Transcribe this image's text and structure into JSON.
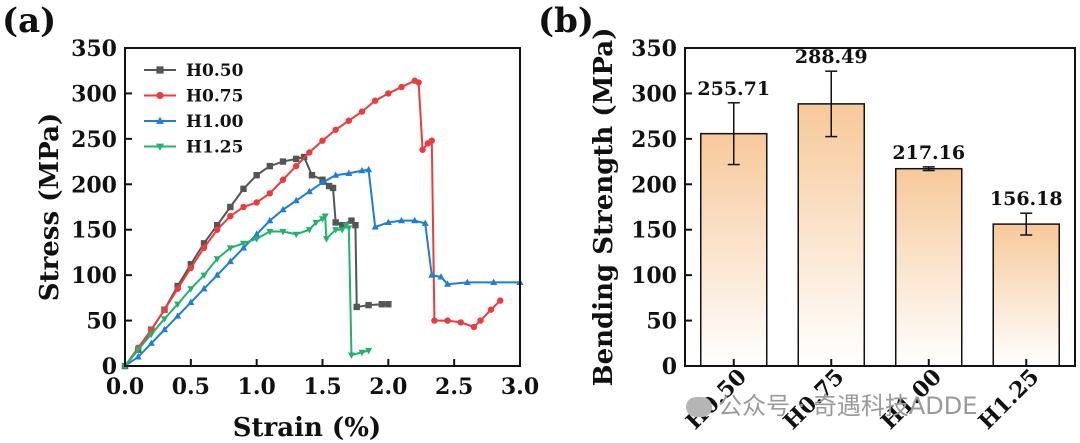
{
  "chart_data": [
    {
      "panel_label": "(a)",
      "type": "line",
      "xlabel": "Strain (%)",
      "ylabel": "Stress (MPa)",
      "xlim": [
        0,
        3.0
      ],
      "ylim": [
        0,
        350
      ],
      "xticks": [
        "0.0",
        "0.5",
        "1.0",
        "1.5",
        "2.0",
        "2.5",
        "3.0"
      ],
      "yticks": [
        "0",
        "50",
        "100",
        "150",
        "200",
        "250",
        "300",
        "350"
      ],
      "grid": false,
      "legend": "top-left",
      "series": [
        {
          "name": "H0.50",
          "color": "#555555",
          "marker": "square",
          "points": [
            [
              0,
              0
            ],
            [
              0.1,
              18
            ],
            [
              0.2,
              40
            ],
            [
              0.3,
              62
            ],
            [
              0.4,
              88
            ],
            [
              0.5,
              112
            ],
            [
              0.6,
              135
            ],
            [
              0.7,
              155
            ],
            [
              0.8,
              175
            ],
            [
              0.9,
              195
            ],
            [
              1.0,
              210
            ],
            [
              1.1,
              220
            ],
            [
              1.2,
              225
            ],
            [
              1.3,
              228
            ],
            [
              1.36,
              230
            ],
            [
              1.42,
              210
            ],
            [
              1.5,
              205
            ],
            [
              1.55,
              198
            ],
            [
              1.58,
              196
            ],
            [
              1.6,
              158
            ],
            [
              1.65,
              155
            ],
            [
              1.72,
              160
            ],
            [
              1.75,
              155
            ],
            [
              1.76,
              65
            ],
            [
              1.85,
              67
            ],
            [
              1.95,
              68
            ],
            [
              2.0,
              68
            ]
          ]
        },
        {
          "name": "H0.75",
          "color": "#ee3b3b",
          "marker": "circle",
          "points": [
            [
              0,
              0
            ],
            [
              0.1,
              20
            ],
            [
              0.2,
              40
            ],
            [
              0.3,
              62
            ],
            [
              0.4,
              85
            ],
            [
              0.5,
              108
            ],
            [
              0.6,
              130
            ],
            [
              0.7,
              150
            ],
            [
              0.8,
              165
            ],
            [
              0.9,
              175
            ],
            [
              1.0,
              180
            ],
            [
              1.1,
              190
            ],
            [
              1.2,
              205
            ],
            [
              1.3,
              220
            ],
            [
              1.4,
              235
            ],
            [
              1.5,
              248
            ],
            [
              1.6,
              260
            ],
            [
              1.7,
              270
            ],
            [
              1.8,
              280
            ],
            [
              1.9,
              292
            ],
            [
              2.0,
              300
            ],
            [
              2.1,
              307
            ],
            [
              2.2,
              314
            ],
            [
              2.23,
              312
            ],
            [
              2.26,
              238
            ],
            [
              2.3,
              245
            ],
            [
              2.33,
              248
            ],
            [
              2.35,
              50
            ],
            [
              2.45,
              50
            ],
            [
              2.55,
              48
            ],
            [
              2.65,
              43
            ],
            [
              2.7,
              50
            ],
            [
              2.78,
              62
            ],
            [
              2.85,
              72
            ]
          ]
        },
        {
          "name": "H1.00",
          "color": "#1a7fe0",
          "marker": "triangle",
          "points": [
            [
              0,
              0
            ],
            [
              0.1,
              10
            ],
            [
              0.2,
              25
            ],
            [
              0.3,
              40
            ],
            [
              0.4,
              55
            ],
            [
              0.5,
              70
            ],
            [
              0.6,
              85
            ],
            [
              0.7,
              100
            ],
            [
              0.8,
              115
            ],
            [
              0.9,
              130
            ],
            [
              1.0,
              145
            ],
            [
              1.1,
              160
            ],
            [
              1.2,
              172
            ],
            [
              1.3,
              182
            ],
            [
              1.4,
              192
            ],
            [
              1.5,
              202
            ],
            [
              1.6,
              210
            ],
            [
              1.7,
              212
            ],
            [
              1.8,
              215
            ],
            [
              1.85,
              216
            ],
            [
              1.9,
              153
            ],
            [
              2.0,
              158
            ],
            [
              2.1,
              160
            ],
            [
              2.2,
              160
            ],
            [
              2.28,
              157
            ],
            [
              2.33,
              100
            ],
            [
              2.4,
              98
            ],
            [
              2.45,
              90
            ],
            [
              2.6,
              92
            ],
            [
              2.8,
              92
            ],
            [
              3.0,
              92
            ]
          ]
        },
        {
          "name": "H1.25",
          "color": "#1fb36c",
          "marker": "triangle-down",
          "points": [
            [
              0,
              0
            ],
            [
              0.1,
              18
            ],
            [
              0.2,
              35
            ],
            [
              0.3,
              52
            ],
            [
              0.4,
              68
            ],
            [
              0.5,
              85
            ],
            [
              0.6,
              100
            ],
            [
              0.7,
              118
            ],
            [
              0.8,
              130
            ],
            [
              0.9,
              135
            ],
            [
              1.0,
              140
            ],
            [
              1.1,
              148
            ],
            [
              1.2,
              148
            ],
            [
              1.3,
              145
            ],
            [
              1.4,
              150
            ],
            [
              1.45,
              158
            ],
            [
              1.5,
              162
            ],
            [
              1.52,
              165
            ],
            [
              1.53,
              140
            ],
            [
              1.6,
              150
            ],
            [
              1.65,
              150
            ],
            [
              1.68,
              155
            ],
            [
              1.7,
              152
            ],
            [
              1.72,
              12
            ],
            [
              1.8,
              15
            ],
            [
              1.85,
              17
            ]
          ]
        }
      ]
    },
    {
      "panel_label": "(b)",
      "type": "bar",
      "xlabel": "",
      "ylabel": "Bending Strength (MPa)",
      "ylim": [
        0,
        350
      ],
      "yticks": [
        "0",
        "50",
        "100",
        "150",
        "200",
        "250",
        "300",
        "350"
      ],
      "grid": false,
      "categories": [
        "H0.50",
        "H0.75",
        "H1.00",
        "H1.25"
      ],
      "values": [
        255.71,
        288.49,
        217.16,
        156.18
      ],
      "value_labels": [
        "255.71",
        "288.49",
        "217.16",
        "156.18"
      ],
      "errors": [
        34,
        36,
        2,
        12
      ],
      "bar_fill_top": "#f7c99a",
      "bar_fill_bottom": "#ffffff"
    }
  ],
  "watermark": "公众号 · 奇遇科技ADDE"
}
